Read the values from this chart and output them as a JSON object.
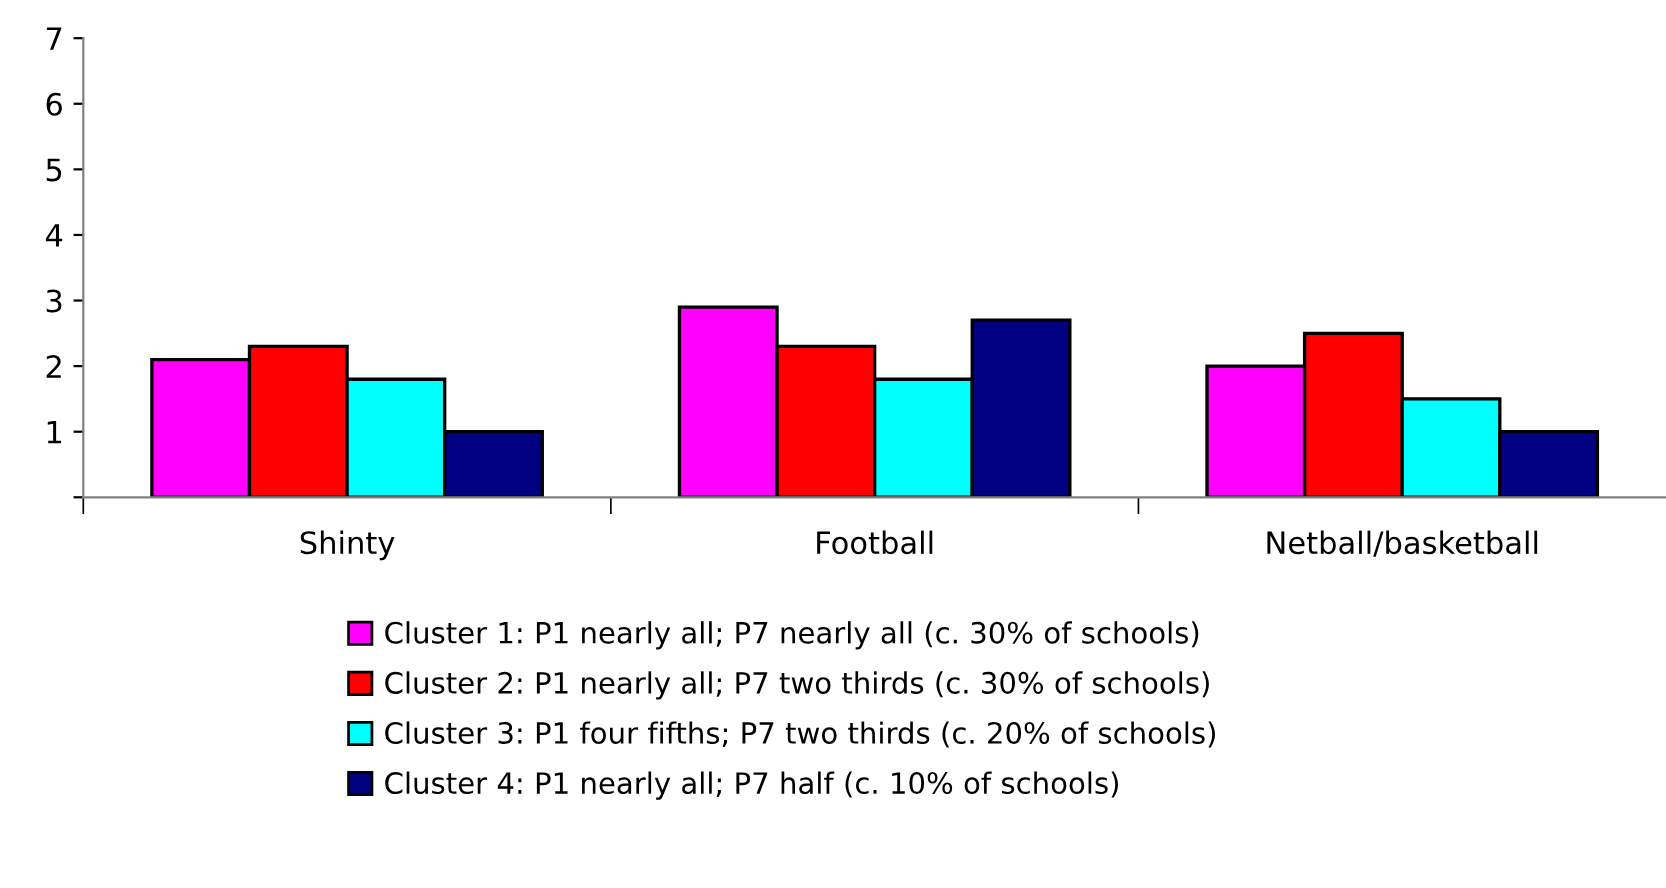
{
  "chart_data": {
    "type": "bar",
    "categories": [
      "Shinty",
      "Football",
      "Netball/basketball"
    ],
    "series": [
      {
        "name": "Cluster 1: P1 nearly all; P7 nearly all (c. 30% of schools)",
        "color": "#ff00ff",
        "values": [
          2.1,
          2.9,
          2.0
        ]
      },
      {
        "name": "Cluster 2: P1 nearly all; P7 two thirds (c. 30% of schools)",
        "color": "#ff0000",
        "values": [
          2.3,
          2.3,
          2.5
        ]
      },
      {
        "name": "Cluster 3: P1 four fifths; P7 two thirds (c. 20% of schools)",
        "color": "#00ffff",
        "values": [
          1.8,
          1.8,
          1.5
        ]
      },
      {
        "name": "Cluster 4: P1 nearly all; P7 half (c. 10% of schools)",
        "color": "#000080",
        "values": [
          1.0,
          2.7,
          1.0
        ]
      }
    ],
    "ylim": [
      0,
      7
    ],
    "yticks": [
      {
        "value": 0,
        "label": null
      },
      1,
      2,
      3,
      4,
      5,
      6,
      7
    ],
    "grid": false,
    "legend": "bottom"
  }
}
